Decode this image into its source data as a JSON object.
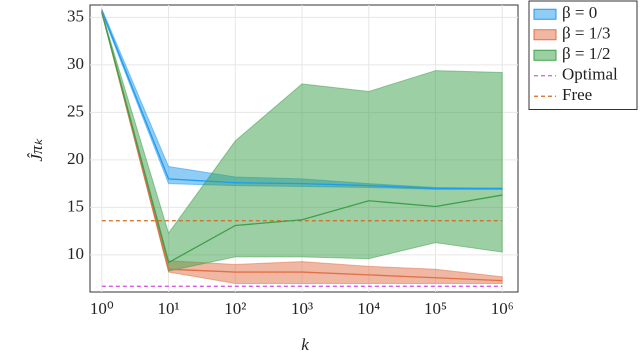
{
  "chart_data": {
    "type": "line",
    "x_label": "k",
    "y_label": "Ĵπₖ",
    "x": [
      1,
      10,
      100,
      1000,
      10000,
      100000,
      1000000
    ],
    "log_x": true,
    "grid": true,
    "legend": "upper right",
    "xlim": [
      0.665,
      1722000
    ],
    "xticks": [
      {
        "value": 1,
        "label": "10⁰"
      },
      {
        "value": 10,
        "label": "10¹"
      },
      {
        "value": 100,
        "label": "10²"
      },
      {
        "value": 1000,
        "label": "10³"
      },
      {
        "value": 10000,
        "label": "10⁴"
      },
      {
        "value": 100000,
        "label": "10⁵"
      },
      {
        "value": 1000000,
        "label": "10⁶"
      }
    ],
    "ylim": [
      6.1,
      36.3
    ],
    "yticks": [
      10,
      15,
      20,
      25,
      30,
      35
    ],
    "series": [
      {
        "name": "β = 0",
        "color": "#1f9bf0",
        "values": [
          35.7,
          18.0,
          17.6,
          17.5,
          17.3,
          17.0,
          17.0
        ],
        "lower": [
          35.5,
          17.5,
          17.3,
          17.2,
          17.1,
          16.9,
          16.9
        ],
        "upper": [
          35.9,
          19.3,
          18.2,
          18.0,
          17.5,
          17.1,
          17.0
        ]
      },
      {
        "name": "β = 1/3",
        "color": "#e26f46",
        "values": [
          35.6,
          8.5,
          8.2,
          8.2,
          7.9,
          7.6,
          7.3
        ],
        "lower": [
          35.5,
          8.2,
          7.0,
          7.0,
          7.0,
          7.0,
          7.0
        ],
        "upper": [
          35.7,
          9.4,
          9.0,
          9.3,
          8.8,
          8.5,
          7.7
        ]
      },
      {
        "name": "β = 1/2",
        "color": "#3ca04a",
        "values": [
          35.5,
          9.2,
          13.1,
          13.7,
          15.7,
          15.1,
          16.3
        ],
        "lower": [
          35.5,
          8.3,
          9.8,
          9.8,
          9.6,
          11.3,
          10.3
        ],
        "upper": [
          35.5,
          12.3,
          22.0,
          28.0,
          27.2,
          29.4,
          29.2
        ]
      }
    ],
    "hlines": [
      {
        "name": "Optimal",
        "value": 6.7,
        "color": "#d65ce0"
      },
      {
        "name": "Free",
        "value": 13.6,
        "color": "#d2691e"
      }
    ]
  }
}
